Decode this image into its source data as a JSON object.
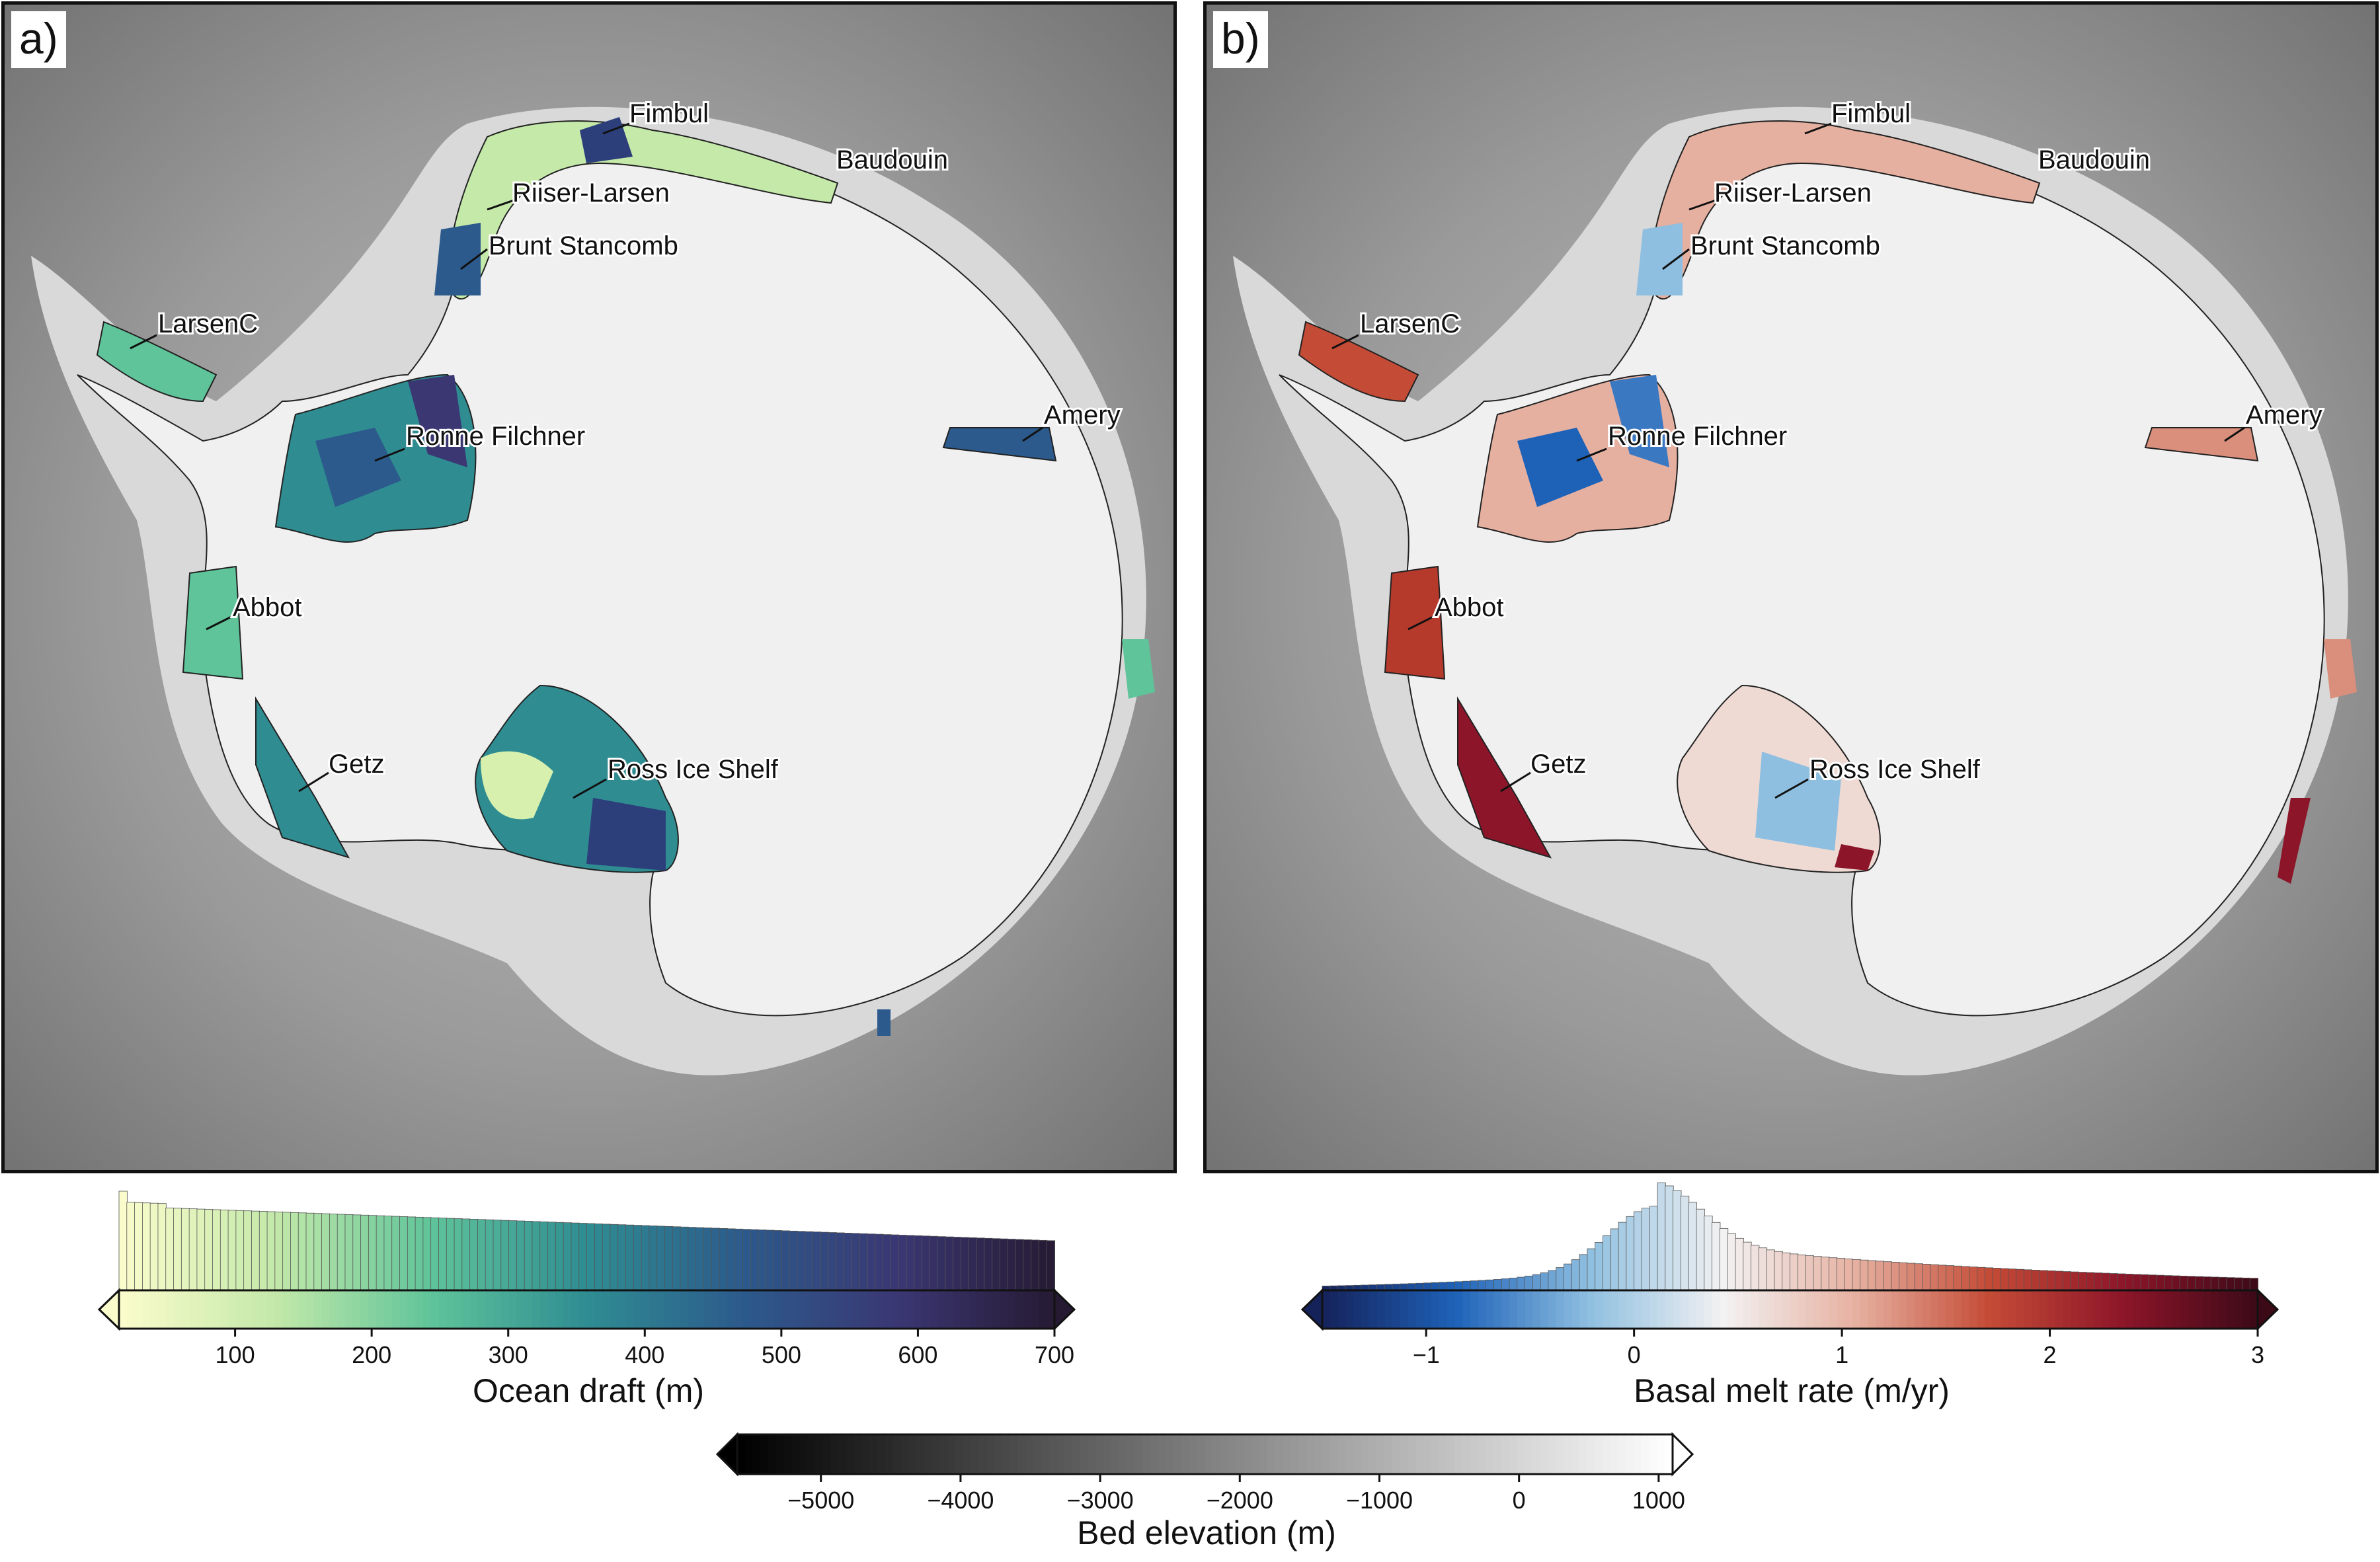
{
  "panels": [
    {
      "id": "a",
      "label": "a)"
    },
    {
      "id": "b",
      "label": "b)"
    }
  ],
  "ice_shelf_labels": [
    "Fimbul",
    "Baudouin",
    "Riiser-Larsen",
    "Brunt Stancomb",
    "LarsenC",
    "Amery",
    "Ronne Filchner",
    "Abbot",
    "Getz",
    "Ross Ice Shelf"
  ],
  "colorbars": {
    "ocean_draft": {
      "label": "Ocean draft (m)",
      "ticks": [
        "100",
        "200",
        "300",
        "400",
        "500",
        "600",
        "700"
      ],
      "tick_values": [
        100,
        200,
        300,
        400,
        500,
        600,
        700
      ],
      "range": [
        15,
        700
      ],
      "colors": [
        "#fbfccc",
        "#c4e9a9",
        "#5fc49a",
        "#2f8d92",
        "#2c5a8c",
        "#3a3773",
        "#261a33"
      ],
      "histogram_shape": "decreasing"
    },
    "basal_melt_rate": {
      "label": "Basal melt rate (m/yr)",
      "ticks": [
        "−1",
        "0",
        "1",
        "2",
        "3"
      ],
      "tick_values": [
        -1,
        0,
        1,
        2,
        3
      ],
      "range": [
        -1.5,
        3
      ],
      "colors": [
        "#15225a",
        "#1e62b8",
        "#8fbfe0",
        "#f2f2f2",
        "#e6b0a0",
        "#c44b36",
        "#8c1529",
        "#3c0a17"
      ],
      "histogram_shape": "peaked near 0.1"
    },
    "bed_elevation": {
      "label": "Bed elevation (m)",
      "ticks": [
        "−5000",
        "−4000",
        "−3000",
        "−2000",
        "−1000",
        "0",
        "1000"
      ],
      "tick_values": [
        -5000,
        -4000,
        -3000,
        -2000,
        -1000,
        0,
        1000
      ],
      "range": [
        -5600,
        1100
      ],
      "colors": [
        "#000000",
        "#ffffff"
      ]
    }
  }
}
